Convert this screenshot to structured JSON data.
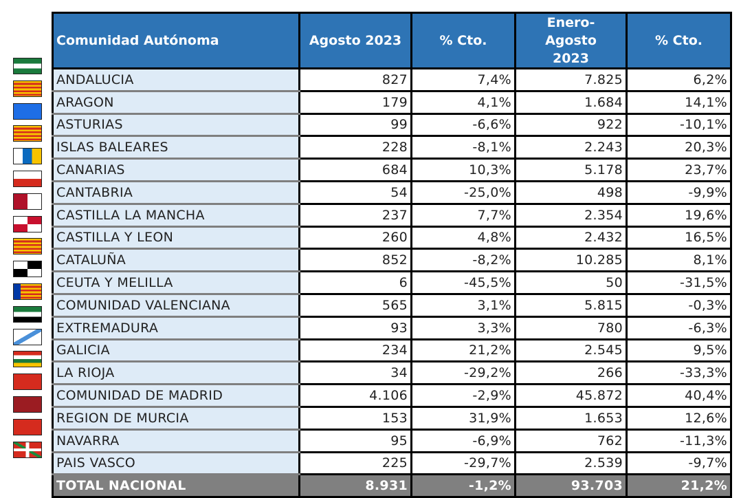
{
  "headers": [
    "Comunidad Autónoma",
    "Agosto 2023",
    "% Cto.",
    "Enero-Agosto 2023",
    "% Cto."
  ],
  "rows": [
    {
      "flag": "and",
      "name": "ANDALUCIA",
      "aug": "827",
      "aug_pct": "7,4%",
      "ytd": "7.825",
      "ytd_pct": "6,2%"
    },
    {
      "flag": "ara",
      "name": "ARAGON",
      "aug": "179",
      "aug_pct": "4,1%",
      "ytd": "1.684",
      "ytd_pct": "14,1%"
    },
    {
      "flag": "ast",
      "name": "ASTURIAS",
      "aug": "99",
      "aug_pct": "-6,6%",
      "ytd": "922",
      "ytd_pct": "-10,1%"
    },
    {
      "flag": "bal",
      "name": "ISLAS BALEARES",
      "aug": "228",
      "aug_pct": "-8,1%",
      "ytd": "2.243",
      "ytd_pct": "20,3%"
    },
    {
      "flag": "can",
      "name": "CANARIAS",
      "aug": "684",
      "aug_pct": "10,3%",
      "ytd": "5.178",
      "ytd_pct": "23,7%"
    },
    {
      "flag": "cnt",
      "name": "CANTABRIA",
      "aug": "54",
      "aug_pct": "-25,0%",
      "ytd": "498",
      "ytd_pct": "-9,9%"
    },
    {
      "flag": "clm",
      "name": "CASTILLA  LA MANCHA",
      "aug": "237",
      "aug_pct": "7,7%",
      "ytd": "2.354",
      "ytd_pct": "19,6%"
    },
    {
      "flag": "cyl",
      "name": "CASTILLA Y LEON",
      "aug": "260",
      "aug_pct": "4,8%",
      "ytd": "2.432",
      "ytd_pct": "16,5%"
    },
    {
      "flag": "cat",
      "name": "CATALUÑA",
      "aug": "852",
      "aug_pct": "-8,2%",
      "ytd": "10.285",
      "ytd_pct": "8,1%"
    },
    {
      "flag": "ceu",
      "name": "CEUTA Y MELILLA",
      "aug": "6",
      "aug_pct": "-45,5%",
      "ytd": "50",
      "ytd_pct": "-31,5%"
    },
    {
      "flag": "val",
      "name": "COMUNIDAD VALENCIANA",
      "aug": "565",
      "aug_pct": "3,1%",
      "ytd": "5.815",
      "ytd_pct": "-0,3%"
    },
    {
      "flag": "ext",
      "name": "EXTREMADURA",
      "aug": "93",
      "aug_pct": "3,3%",
      "ytd": "780",
      "ytd_pct": "-6,3%"
    },
    {
      "flag": "gal",
      "name": "GALICIA",
      "aug": "234",
      "aug_pct": "21,2%",
      "ytd": "2.545",
      "ytd_pct": "9,5%"
    },
    {
      "flag": "rio",
      "name": "LA RIOJA",
      "aug": "34",
      "aug_pct": "-29,2%",
      "ytd": "266",
      "ytd_pct": "-33,3%"
    },
    {
      "flag": "mad",
      "name": "COMUNIDAD DE MADRID",
      "aug": "4.106",
      "aug_pct": "-2,9%",
      "ytd": "45.872",
      "ytd_pct": "40,4%"
    },
    {
      "flag": "mur",
      "name": "REGION DE MURCIA",
      "aug": "153",
      "aug_pct": "31,9%",
      "ytd": "1.653",
      "ytd_pct": "12,6%"
    },
    {
      "flag": "nav",
      "name": "NAVARRA",
      "aug": "95",
      "aug_pct": "-6,9%",
      "ytd": "762",
      "ytd_pct": "-11,3%"
    },
    {
      "flag": "pv",
      "name": "PAIS VASCO",
      "aug": "225",
      "aug_pct": "-29,7%",
      "ytd": "2.539",
      "ytd_pct": "-9,7%"
    }
  ],
  "total": {
    "name": "TOTAL NACIONAL",
    "aug": "8.931",
    "aug_pct": "-1,2%",
    "ytd": "93.703",
    "ytd_pct": "21,2%"
  },
  "colors": {
    "header": "#2e74b5",
    "name_cell": "#deebf7",
    "total": "#808080"
  }
}
